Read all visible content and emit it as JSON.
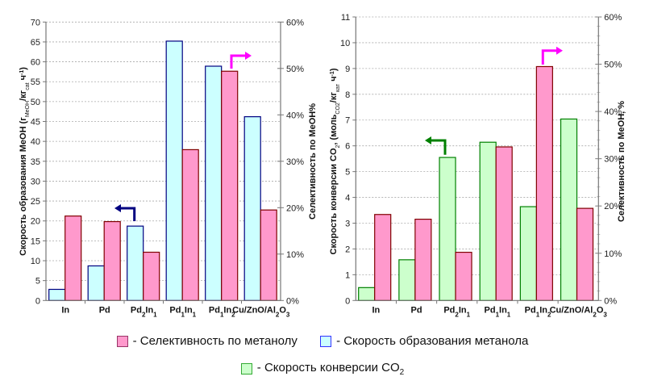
{
  "chart_data": [
    {
      "type": "bar",
      "id": "left",
      "categories": [
        {
          "base": "In",
          "parts": [
            [
              "In",
              ""
            ]
          ]
        },
        {
          "base": "Pd",
          "parts": [
            [
              "Pd",
              ""
            ]
          ]
        },
        {
          "base": "Pd2In1",
          "parts": [
            [
              "Pd",
              "2"
            ],
            [
              "In",
              "1"
            ]
          ]
        },
        {
          "base": "Pd1In1",
          "parts": [
            [
              "Pd",
              "1"
            ],
            [
              "In",
              "1"
            ]
          ]
        },
        {
          "base": "Pd1In2",
          "parts": [
            [
              "Pd",
              "1"
            ],
            [
              "In",
              "2"
            ]
          ]
        },
        {
          "base": "Cu/ZnO/Al2O3",
          "parts": [
            [
              "Cu/ZnO/Al",
              "2"
            ],
            [
              "O",
              "3"
            ]
          ]
        }
      ],
      "category_labels": [
        "In",
        "Pd",
        "Pd2In1",
        "Pd1In1",
        "Pd1In2",
        "Cu/ZnO/Al2O3"
      ],
      "series": [
        {
          "name": "Скорость образования метанола",
          "axis": "left",
          "values": [
            2.8,
            8.7,
            18.7,
            65.2,
            58.9,
            46.2
          ]
        },
        {
          "name": "Селективность по метанолу",
          "axis": "right",
          "unit": "%",
          "values": [
            18.2,
            17.0,
            10.4,
            32.5,
            49.4,
            19.5
          ]
        }
      ],
      "ylabel": "Скорость образования MeOH (г_MeOH/кг_cat ч^-1)",
      "ylabel_parts": {
        "main": "Скорость образования MeOH (г",
        "sub1": "MeOH",
        "mid": "/кг",
        "sub2": "cat",
        "end": " ч",
        "sup": "-1",
        "close": ")"
      },
      "y2label": "Селективность по MeOH%",
      "ylim": [
        0,
        70
      ],
      "yticks": [
        0,
        5,
        10,
        15,
        20,
        25,
        30,
        35,
        40,
        45,
        50,
        55,
        60,
        65,
        70
      ],
      "y2lim": [
        0,
        60
      ],
      "y2ticks": [
        "0%",
        "10%",
        "20%",
        "30%",
        "40%",
        "50%",
        "60%"
      ],
      "grid": true,
      "annotations": [
        {
          "type": "arrow",
          "direction": "left",
          "meaning": "rate series uses left axis",
          "color": "#000080"
        },
        {
          "type": "arrow",
          "direction": "right",
          "meaning": "selectivity series uses right axis",
          "color": "#FF00FF"
        }
      ]
    },
    {
      "type": "bar",
      "id": "right",
      "category_labels": [
        "In",
        "Pd",
        "Pd2In1",
        "Pd1In1",
        "Pd1In2",
        "Cu/ZnO/Al2O3"
      ],
      "series": [
        {
          "name": "Скорость конверсии CO2",
          "axis": "left",
          "values": [
            0.5,
            1.58,
            5.55,
            6.14,
            3.64,
            7.04
          ]
        },
        {
          "name": "Селективность по метанолу",
          "axis": "right",
          "unit": "%",
          "values": [
            18.2,
            17.2,
            10.2,
            32.5,
            49.5,
            19.5
          ]
        }
      ],
      "ylabel": "Скорость конверсии CO2, (моль_CO2/кг_кат ч^-1)",
      "ylabel_parts": {
        "main": "Скорость конверсии CO",
        "sub0": "2",
        "pre": ", (моль",
        "sub1": "CO2",
        "mid": "/кг",
        "sub2": "кат",
        "end": " ч",
        "sup": "-1",
        "close": ")"
      },
      "y2label": "Селективность по MeOH, %",
      "ylim": [
        0,
        11
      ],
      "yticks": [
        0,
        1,
        2,
        3,
        4,
        5,
        6,
        7,
        8,
        9,
        10,
        11
      ],
      "y2lim": [
        0,
        60
      ],
      "y2ticks": [
        "0%",
        "10%",
        "20%",
        "30%",
        "40%",
        "50%",
        "60%"
      ],
      "grid": true,
      "annotations": [
        {
          "type": "arrow",
          "direction": "left",
          "meaning": "CO2 conversion series uses left axis",
          "color": "#008000"
        },
        {
          "type": "arrow",
          "direction": "right",
          "meaning": "selectivity series uses right axis",
          "color": "#FF00FF"
        }
      ]
    }
  ],
  "legend": {
    "placement": "bottom",
    "items": [
      {
        "label": "- Селективность по метанолу",
        "fill": "#FF99CC",
        "stroke": "#993366"
      },
      {
        "label": "- Скорость образования метанола",
        "fill": "#CCFFFF",
        "stroke": "#3333FF"
      },
      {
        "label_main": "- Скорость конверсии CO",
        "label_sub": "2",
        "fill": "#CCFFCC",
        "stroke": "#33AA33"
      }
    ]
  },
  "colors": {
    "rate_meoh_fill": "#CCFFFF",
    "rate_meoh_stroke": "#000080",
    "selectivity_fill": "#FF99CC",
    "selectivity_stroke": "#800000",
    "co2_fill": "#CCFFCC",
    "co2_stroke": "#008000"
  }
}
